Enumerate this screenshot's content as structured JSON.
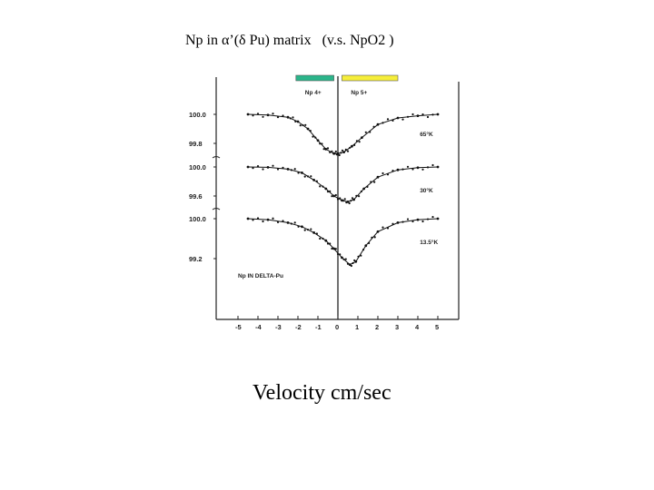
{
  "page": {
    "title": "Np in α’(δ Pu) matrix   (v.s. NpO2 )",
    "x_caption": "Velocity cm/sec"
  },
  "chart_data": {
    "type": "scatter",
    "title": "Np in α’(δ Pu) matrix   (v.s. NpO2 )",
    "xlabel": "Velocity cm/sec",
    "ylabel": "",
    "xlim": [
      -5.5,
      5.5
    ],
    "x_ticks": [
      "-5",
      "-4",
      "-3",
      "-2",
      "-1",
      "0",
      "1",
      "2",
      "3",
      "4",
      "5"
    ],
    "inset_label": "Np IN DELTA-Pu",
    "valence_markers": [
      {
        "label": "Np 4+",
        "color": "#2bb58a",
        "x_from": -2.1,
        "x_to": -0.2
      },
      {
        "label": "Np 5+",
        "color": "#f6ee3a",
        "x_from": 0.2,
        "x_to": 3.0
      }
    ],
    "series": [
      {
        "name": "65°K",
        "y_ticks": [
          "100.0",
          "99.8"
        ],
        "y_tick_values": [
          100.0,
          99.8
        ],
        "x": [
          -4.5,
          -3.5,
          -2.5,
          -2.0,
          -1.5,
          -1.0,
          -0.6,
          -0.2,
          0.0,
          0.3,
          0.7,
          1.2,
          2.0,
          3.0,
          4.0,
          5.0
        ],
        "y": [
          100.0,
          99.995,
          99.98,
          99.95,
          99.9,
          99.82,
          99.76,
          99.73,
          99.73,
          99.74,
          99.78,
          99.84,
          99.93,
          99.975,
          99.99,
          100.0
        ]
      },
      {
        "name": "30°K",
        "y_ticks": [
          "100.0",
          "99.6"
        ],
        "y_tick_values": [
          100.0,
          99.6
        ],
        "x": [
          -4.5,
          -3.5,
          -2.5,
          -1.8,
          -1.2,
          -0.6,
          -0.2,
          0.2,
          0.5,
          0.8,
          1.3,
          2.0,
          3.0,
          4.0,
          5.0
        ],
        "y": [
          100.0,
          99.995,
          99.97,
          99.92,
          99.82,
          99.7,
          99.6,
          99.54,
          99.52,
          99.55,
          99.7,
          99.86,
          99.96,
          99.99,
          100.0
        ]
      },
      {
        "name": "13.5°K",
        "y_ticks": [
          "100.0",
          "99.2"
        ],
        "y_tick_values": [
          100.0,
          99.2
        ],
        "x": [
          -4.5,
          -3.5,
          -2.5,
          -1.8,
          -1.2,
          -0.6,
          -0.2,
          0.2,
          0.6,
          0.9,
          1.4,
          2.0,
          3.0,
          4.0,
          5.0
        ],
        "y": [
          100.0,
          99.98,
          99.92,
          99.84,
          99.72,
          99.56,
          99.4,
          99.22,
          99.08,
          99.14,
          99.46,
          99.74,
          99.92,
          99.98,
          100.0
        ]
      }
    ]
  }
}
